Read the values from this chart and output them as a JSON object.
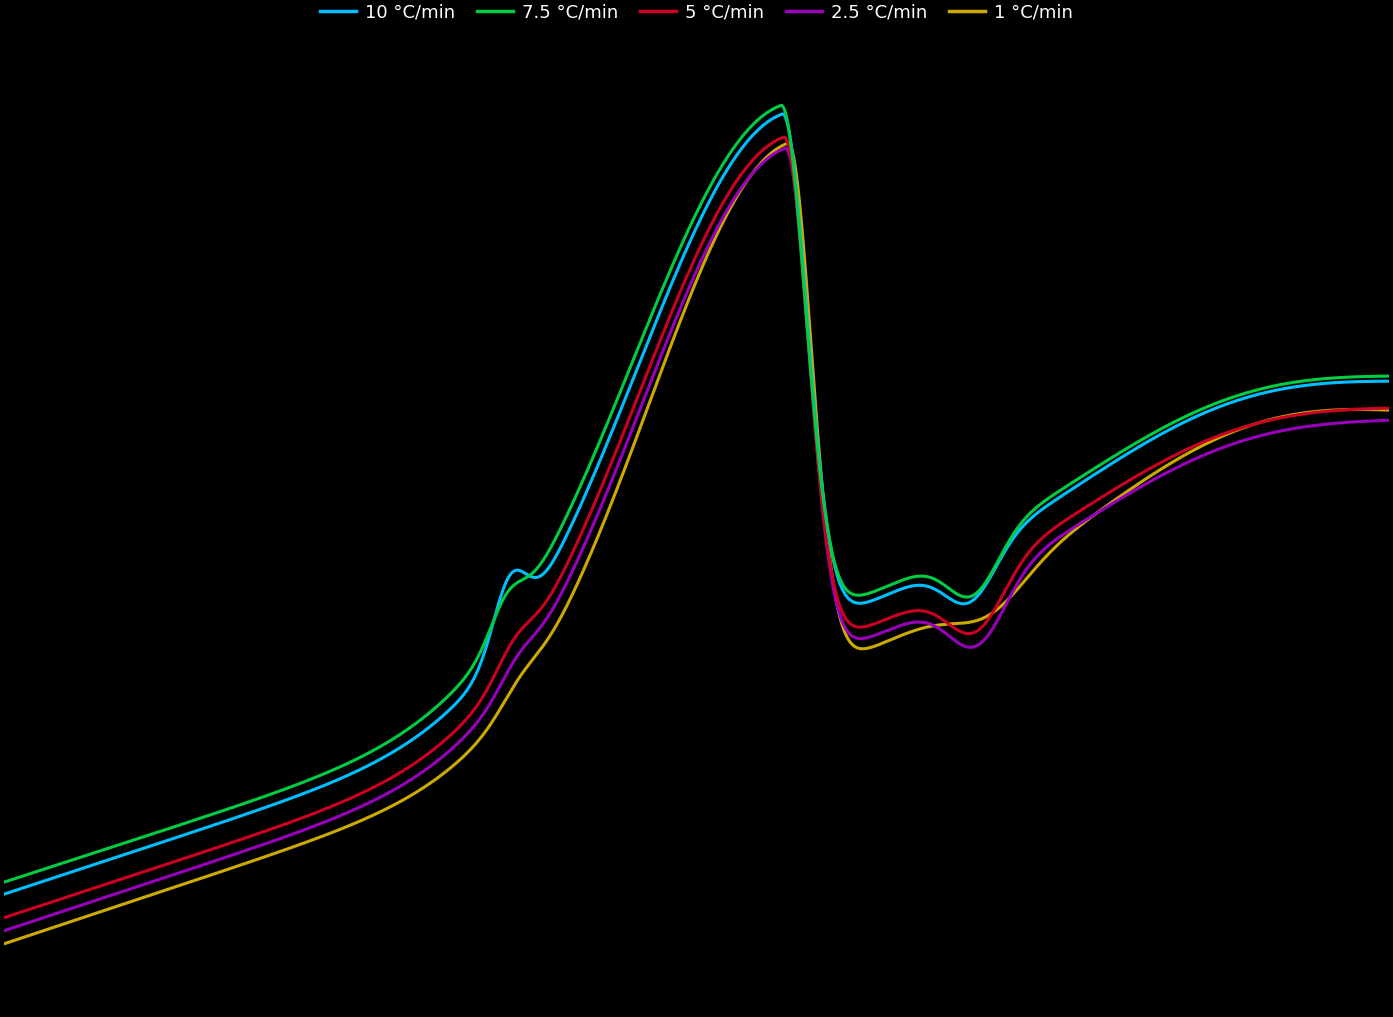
{
  "background_color": "#000000",
  "colors": [
    "#00BFFF",
    "#00CC44",
    "#CC0022",
    "#9900BB",
    "#CCAA00"
  ],
  "legend_labels": [
    "10 °C/min",
    "7.5 °C/min",
    "5 °C/min",
    "2.5 °C/min",
    "1 °C/min"
  ],
  "line_width": 2.2,
  "figsize": [
    13.93,
    10.17
  ],
  "dpi": 100,
  "legend_fontsize": 13
}
